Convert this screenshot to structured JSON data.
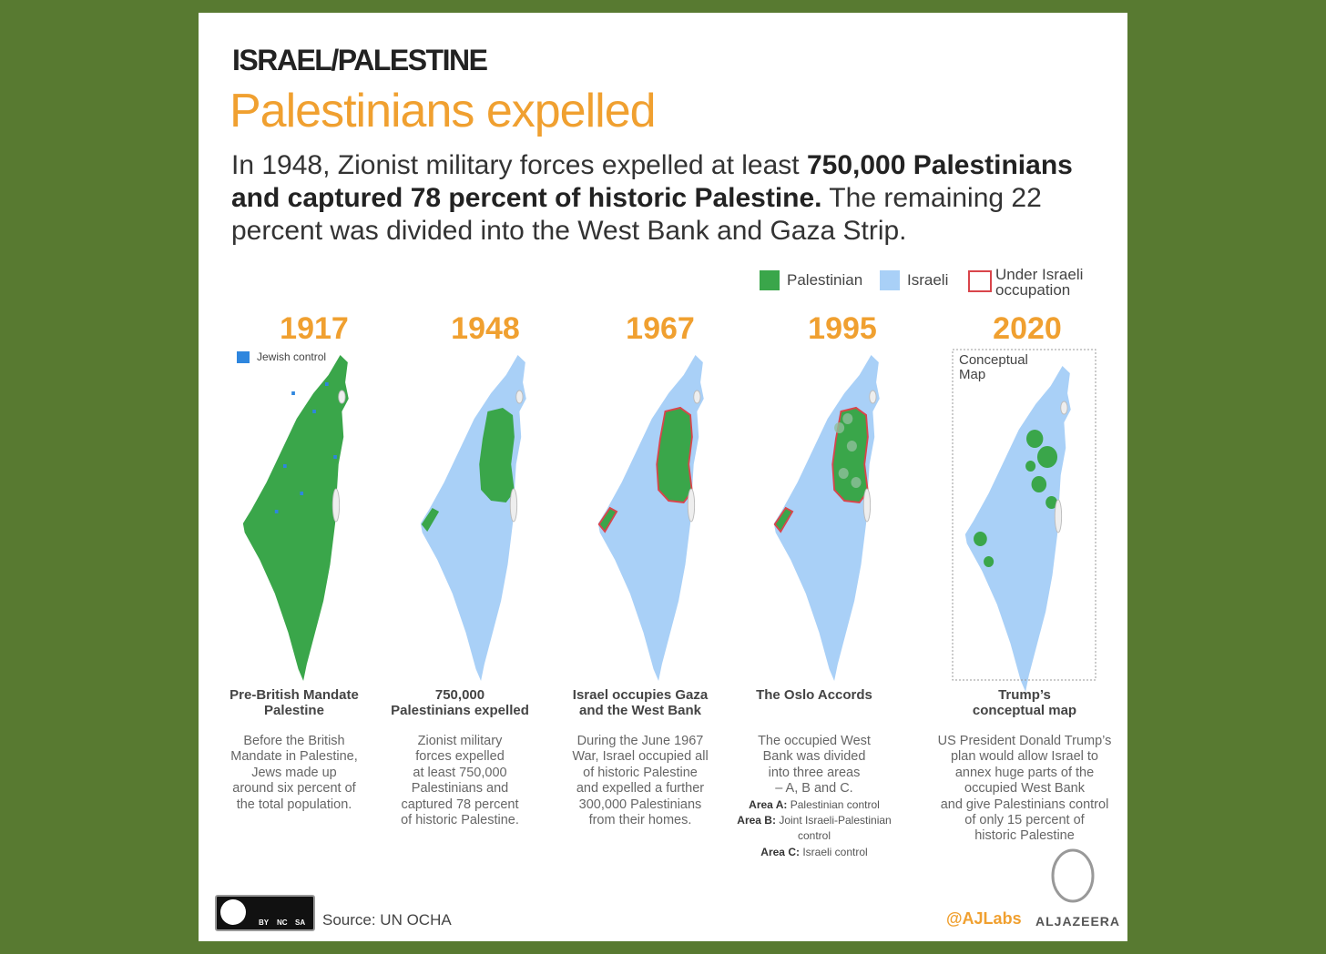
{
  "header": {
    "kicker": "ISRAEL/PALESTINE",
    "title": "Palestinians expelled",
    "intro": [
      {
        "text": "In 1948, Zionist military forces expelled at least ",
        "bold": false
      },
      {
        "text": "750,000 Palestinians and captured 78 percent of historic Palestine.",
        "bold": true
      },
      {
        "text": " The remaining 22 percent was divided into the West Bank and Gaza Strip.",
        "bold": false
      }
    ]
  },
  "legend": {
    "items": [
      {
        "label": "Palestinian",
        "color": "#3aa64a"
      },
      {
        "label": "Israeli",
        "color": "#a9d0f7"
      },
      {
        "label": "Under Israeli occupation",
        "color": "#d9454b"
      }
    ]
  },
  "panels": [
    {
      "year": "1917",
      "annotation": "Jewish control",
      "caption": [
        "Pre-British Mandate",
        "Palestine"
      ],
      "description": [
        "Before the British",
        "Mandate in Palestine,",
        "Jews made up",
        "around six percent of",
        "the total population."
      ]
    },
    {
      "year": "1948",
      "caption": [
        "750,000",
        "Palestinians expelled"
      ],
      "description": [
        "Zionist military",
        "forces expelled",
        "at least 750,000",
        "Palestinians and",
        "captured 78 percent",
        "of historic Palestine."
      ]
    },
    {
      "year": "1967",
      "caption": [
        "Israel occupies Gaza",
        "and the West Bank"
      ],
      "description": [
        "During the June 1967",
        "War, Israel occupied all",
        "of historic Palestine",
        "and expelled a further",
        "300,000 Palestinians",
        "from their homes."
      ]
    },
    {
      "year": "1995",
      "caption": [
        "The Oslo Accords"
      ],
      "description": [
        "The occupied West",
        "Bank was divided",
        "into three areas",
        "– A, B and C."
      ],
      "areas": [
        {
          "label": "Area A:",
          "text": "Palestinian control"
        },
        {
          "label": "Area B:",
          "text": "Joint Israeli-Palestinian control"
        },
        {
          "label": "Area C:",
          "text": "Israeli control"
        }
      ]
    },
    {
      "year": "2020",
      "annotation": "Conceptual Map",
      "caption": [
        "Trump’s",
        "conceptual map"
      ],
      "description": [
        "US President Donald Trump’s",
        "plan would allow Israel to",
        "annex huge parts of the",
        "occupied West Bank",
        "and give Palestinians control",
        "of only 15 percent of",
        "historic Palestine"
      ]
    }
  ],
  "footer": {
    "license": [
      "BY",
      "NC",
      "SA"
    ],
    "source": "Source: UN OCHA",
    "credit": "@AJLabs",
    "brand": "ALJAZEERA"
  }
}
